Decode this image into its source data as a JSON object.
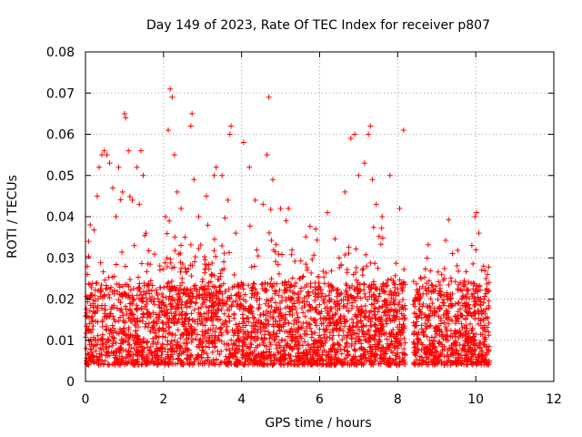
{
  "chart_data": {
    "type": "scatter",
    "title": "Day 149 of 2023, Rate Of TEC Index for receiver p807",
    "xlabel": "GPS time / hours",
    "ylabel": "ROTI / TECUs",
    "xlim": [
      0,
      12
    ],
    "ylim": [
      0,
      0.08
    ],
    "xticks": [
      0,
      2,
      4,
      6,
      8,
      10,
      12
    ],
    "xtick_labels": [
      "0",
      "2",
      "4",
      "6",
      "8",
      "10",
      "12"
    ],
    "yticks": [
      0,
      0.01,
      0.02,
      0.03,
      0.04,
      0.05,
      0.06,
      0.07,
      0.08
    ],
    "ytick_labels": [
      "0",
      "0.01",
      "0.02",
      "0.03",
      "0.04",
      "0.05",
      "0.06",
      "0.07",
      "0.08"
    ],
    "grid": true,
    "marker": "+",
    "marker_color": "#ff0000",
    "data_coverage_hours": [
      0,
      10.35
    ],
    "gaps_hours": [
      [
        8.2,
        8.4
      ]
    ],
    "series": [
      {
        "name": "ROTI",
        "points": [
          [
            0.02,
            0.005
          ],
          [
            0.05,
            0.026
          ],
          [
            0.08,
            0.034
          ],
          [
            0.12,
            0.038
          ],
          [
            0.15,
            0.021
          ],
          [
            0.2,
            0.018
          ],
          [
            0.3,
            0.045
          ],
          [
            0.35,
            0.052
          ],
          [
            0.42,
            0.055
          ],
          [
            0.48,
            0.056
          ],
          [
            0.55,
            0.055
          ],
          [
            0.62,
            0.053
          ],
          [
            0.7,
            0.047
          ],
          [
            0.78,
            0.04
          ],
          [
            0.85,
            0.052
          ],
          [
            0.95,
            0.046
          ],
          [
            1.0,
            0.065
          ],
          [
            1.03,
            0.064
          ],
          [
            1.1,
            0.056
          ],
          [
            1.2,
            0.044
          ],
          [
            1.25,
            0.033
          ],
          [
            1.32,
            0.052
          ],
          [
            1.38,
            0.043
          ],
          [
            1.42,
            0.056
          ],
          [
            1.48,
            0.05
          ],
          [
            1.55,
            0.036
          ],
          [
            1.7,
            0.022
          ],
          [
            1.9,
            0.018
          ],
          [
            2.05,
            0.04
          ],
          [
            2.12,
            0.061
          ],
          [
            2.17,
            0.071
          ],
          [
            2.22,
            0.069
          ],
          [
            2.28,
            0.055
          ],
          [
            2.35,
            0.046
          ],
          [
            2.45,
            0.042
          ],
          [
            2.55,
            0.035
          ],
          [
            2.7,
            0.062
          ],
          [
            2.73,
            0.065
          ],
          [
            2.78,
            0.049
          ],
          [
            2.9,
            0.04
          ],
          [
            3.1,
            0.045
          ],
          [
            3.3,
            0.05
          ],
          [
            3.35,
            0.052
          ],
          [
            3.5,
            0.05
          ],
          [
            3.65,
            0.044
          ],
          [
            3.7,
            0.06
          ],
          [
            3.73,
            0.062
          ],
          [
            3.85,
            0.036
          ],
          [
            4.05,
            0.058
          ],
          [
            4.2,
            0.052
          ],
          [
            4.35,
            0.044
          ],
          [
            4.55,
            0.043
          ],
          [
            4.65,
            0.055
          ],
          [
            4.7,
            0.069
          ],
          [
            4.8,
            0.049
          ],
          [
            5.0,
            0.042
          ],
          [
            5.2,
            0.042
          ],
          [
            5.5,
            0.025
          ],
          [
            5.9,
            0.037
          ],
          [
            6.2,
            0.041
          ],
          [
            6.5,
            0.03
          ],
          [
            6.65,
            0.046
          ],
          [
            6.8,
            0.059
          ],
          [
            6.9,
            0.06
          ],
          [
            7.0,
            0.05
          ],
          [
            7.15,
            0.053
          ],
          [
            7.25,
            0.06
          ],
          [
            7.3,
            0.062
          ],
          [
            7.35,
            0.049
          ],
          [
            7.45,
            0.043
          ],
          [
            7.6,
            0.04
          ],
          [
            7.8,
            0.05
          ],
          [
            8.05,
            0.042
          ],
          [
            8.15,
            0.061
          ],
          [
            8.5,
            0.02
          ],
          [
            8.8,
            0.022
          ],
          [
            9.2,
            0.025
          ],
          [
            9.6,
            0.024
          ],
          [
            9.9,
            0.033
          ],
          [
            9.98,
            0.04
          ],
          [
            10.02,
            0.041
          ],
          [
            10.08,
            0.036
          ],
          [
            10.2,
            0.028
          ],
          [
            10.3,
            0.026
          ],
          [
            10.34,
            0.024
          ]
        ]
      }
    ]
  }
}
